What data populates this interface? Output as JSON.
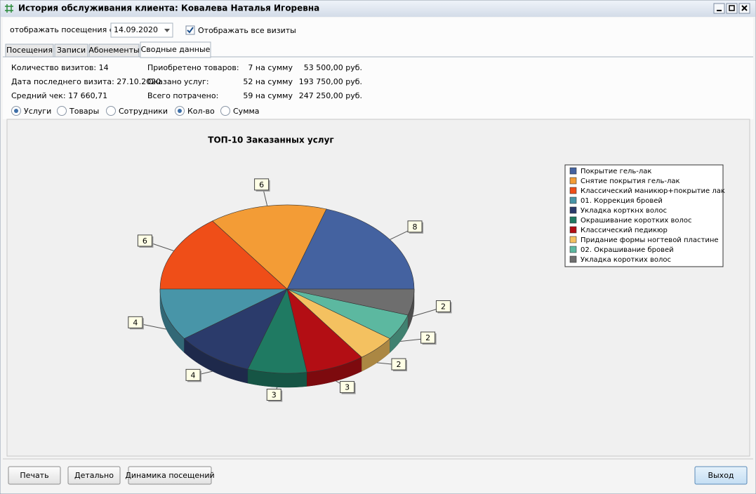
{
  "window": {
    "title": "История обслуживания клиента: Ковалева Наталья Игоревна"
  },
  "filter": {
    "label": "отображать посещения с",
    "date": "14.09.2020",
    "show_all_label": "Отображать все визиты",
    "show_all_checked": true
  },
  "tabs": {
    "items": [
      "Посещения",
      "Записи",
      "Абонементы",
      "Сводные данные"
    ],
    "active": 3
  },
  "summary": {
    "rows": [
      [
        "Количество визитов: 14",
        "Приобретено товаров:",
        "7 на сумму",
        "53 500,00 руб."
      ],
      [
        "Дата последнего визита: 27.10.2020",
        "Оказано услуг:",
        "52 на сумму",
        "193 750,00 руб."
      ],
      [
        "Средний чек: 17 660,71",
        "Всего потрачено:",
        "59 на сумму",
        "247 250,00 руб."
      ]
    ]
  },
  "options": [
    {
      "label": "Услуги",
      "checked": true
    },
    {
      "label": "Товары",
      "checked": false
    },
    {
      "label": "Сотрудники",
      "checked": false
    },
    {
      "label": "Кол-во",
      "checked": true
    },
    {
      "label": "Сумма",
      "checked": false
    }
  ],
  "chart_data": {
    "type": "pie",
    "title": "ТОП-10 Заказанных услуг",
    "categories": [
      "Покрытие гель-лак",
      "Снятие покрытия гель-лак",
      "Классический маникюр+покрытие лак",
      "01. Коррекция бровей",
      "Укладка корткнх волос",
      "Окрашивание коротких волос",
      "Классический педикюр",
      "Придание формы ногтевой пластине",
      "02. Окрашивание бровей",
      "Укладка коротких волос"
    ],
    "values": [
      8,
      6,
      6,
      4,
      4,
      3,
      3,
      2,
      2,
      2
    ],
    "colors": [
      "#4462a0",
      "#f39c36",
      "#ef4e18",
      "#4895a8",
      "#2b3b6b",
      "#1f7a62",
      "#b30e14",
      "#f4c160",
      "#5cb8a0",
      "#6e6e6e"
    ],
    "legend": "right"
  },
  "buttons": [
    "Печать",
    "Детально",
    "Динамика посещений",
    "Выход"
  ]
}
